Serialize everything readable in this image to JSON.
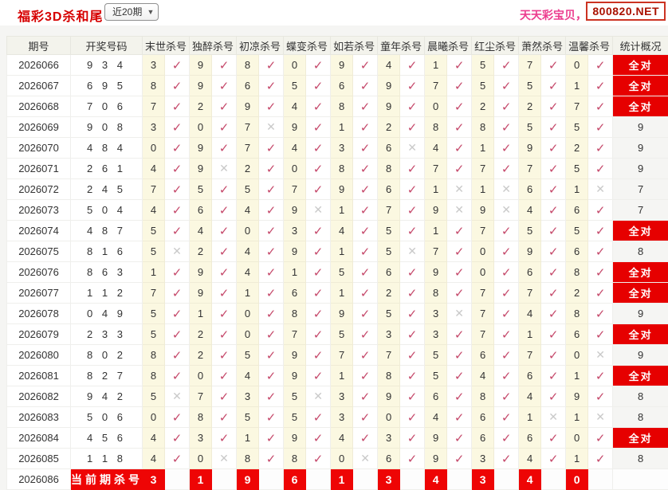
{
  "header": {
    "title": "福彩3D杀和尾",
    "range_selector": {
      "value": "近20期"
    },
    "promo_text": "天天彩宝贝，天",
    "site_badge": "800820.NET"
  },
  "labels": {
    "all_correct": "全对",
    "current_kill_label": "当前期杀号"
  },
  "table": {
    "columns": {
      "period": "期号",
      "draw_numbers": "开奖号码",
      "kills": [
        "末世杀号",
        "独醉杀号",
        "初凉杀号",
        "蝶变杀号",
        "如若杀号",
        "童年杀号",
        "晨曦杀号",
        "红尘杀号",
        "萧然杀号",
        "温馨杀号"
      ],
      "stat": "统计概况"
    },
    "rows": [
      {
        "period": "2026066",
        "numbers": "9 3 4",
        "kills": [
          [
            "3",
            "v"
          ],
          [
            "9",
            "v"
          ],
          [
            "8",
            "v"
          ],
          [
            "0",
            "v"
          ],
          [
            "9",
            "v"
          ],
          [
            "4",
            "v"
          ],
          [
            "1",
            "v"
          ],
          [
            "5",
            "v"
          ],
          [
            "7",
            "v"
          ],
          [
            "0",
            "v"
          ]
        ],
        "stat": "全对"
      },
      {
        "period": "2026067",
        "numbers": "6 9 5",
        "kills": [
          [
            "8",
            "v"
          ],
          [
            "9",
            "v"
          ],
          [
            "6",
            "v"
          ],
          [
            "5",
            "v"
          ],
          [
            "6",
            "v"
          ],
          [
            "9",
            "v"
          ],
          [
            "7",
            "v"
          ],
          [
            "5",
            "v"
          ],
          [
            "5",
            "v"
          ],
          [
            "1",
            "v"
          ]
        ],
        "stat": "全对"
      },
      {
        "period": "2026068",
        "numbers": "7 0 6",
        "kills": [
          [
            "7",
            "v"
          ],
          [
            "2",
            "v"
          ],
          [
            "9",
            "v"
          ],
          [
            "4",
            "v"
          ],
          [
            "8",
            "v"
          ],
          [
            "9",
            "v"
          ],
          [
            "0",
            "v"
          ],
          [
            "2",
            "v"
          ],
          [
            "2",
            "v"
          ],
          [
            "7",
            "v"
          ]
        ],
        "stat": "全对"
      },
      {
        "period": "2026069",
        "numbers": "9 0 8",
        "kills": [
          [
            "3",
            "v"
          ],
          [
            "0",
            "v"
          ],
          [
            "7",
            "x"
          ],
          [
            "9",
            "v"
          ],
          [
            "1",
            "v"
          ],
          [
            "2",
            "v"
          ],
          [
            "8",
            "v"
          ],
          [
            "8",
            "v"
          ],
          [
            "5",
            "v"
          ],
          [
            "5",
            "v"
          ]
        ],
        "stat": "9"
      },
      {
        "period": "2026070",
        "numbers": "4 8 4",
        "kills": [
          [
            "0",
            "v"
          ],
          [
            "9",
            "v"
          ],
          [
            "7",
            "v"
          ],
          [
            "4",
            "v"
          ],
          [
            "3",
            "v"
          ],
          [
            "6",
            "x"
          ],
          [
            "4",
            "v"
          ],
          [
            "1",
            "v"
          ],
          [
            "9",
            "v"
          ],
          [
            "2",
            "v"
          ]
        ],
        "stat": "9"
      },
      {
        "period": "2026071",
        "numbers": "2 6 1",
        "kills": [
          [
            "4",
            "v"
          ],
          [
            "9",
            "x"
          ],
          [
            "2",
            "v"
          ],
          [
            "0",
            "v"
          ],
          [
            "8",
            "v"
          ],
          [
            "8",
            "v"
          ],
          [
            "7",
            "v"
          ],
          [
            "7",
            "v"
          ],
          [
            "7",
            "v"
          ],
          [
            "5",
            "v"
          ]
        ],
        "stat": "9"
      },
      {
        "period": "2026072",
        "numbers": "2 4 5",
        "kills": [
          [
            "7",
            "v"
          ],
          [
            "5",
            "v"
          ],
          [
            "5",
            "v"
          ],
          [
            "7",
            "v"
          ],
          [
            "9",
            "v"
          ],
          [
            "6",
            "v"
          ],
          [
            "1",
            "x"
          ],
          [
            "1",
            "x"
          ],
          [
            "6",
            "v"
          ],
          [
            "1",
            "x"
          ]
        ],
        "stat": "7"
      },
      {
        "period": "2026073",
        "numbers": "5 0 4",
        "kills": [
          [
            "4",
            "v"
          ],
          [
            "6",
            "v"
          ],
          [
            "4",
            "v"
          ],
          [
            "9",
            "x"
          ],
          [
            "1",
            "v"
          ],
          [
            "7",
            "v"
          ],
          [
            "9",
            "x"
          ],
          [
            "9",
            "x"
          ],
          [
            "4",
            "v"
          ],
          [
            "6",
            "v"
          ]
        ],
        "stat": "7"
      },
      {
        "period": "2026074",
        "numbers": "4 8 7",
        "kills": [
          [
            "5",
            "v"
          ],
          [
            "4",
            "v"
          ],
          [
            "0",
            "v"
          ],
          [
            "3",
            "v"
          ],
          [
            "4",
            "v"
          ],
          [
            "5",
            "v"
          ],
          [
            "1",
            "v"
          ],
          [
            "7",
            "v"
          ],
          [
            "5",
            "v"
          ],
          [
            "5",
            "v"
          ]
        ],
        "stat": "全对"
      },
      {
        "period": "2026075",
        "numbers": "8 1 6",
        "kills": [
          [
            "5",
            "x"
          ],
          [
            "2",
            "v"
          ],
          [
            "4",
            "v"
          ],
          [
            "9",
            "v"
          ],
          [
            "1",
            "v"
          ],
          [
            "5",
            "x"
          ],
          [
            "7",
            "v"
          ],
          [
            "0",
            "v"
          ],
          [
            "9",
            "v"
          ],
          [
            "6",
            "v"
          ]
        ],
        "stat": "8"
      },
      {
        "period": "2026076",
        "numbers": "8 6 3",
        "kills": [
          [
            "1",
            "v"
          ],
          [
            "9",
            "v"
          ],
          [
            "4",
            "v"
          ],
          [
            "1",
            "v"
          ],
          [
            "5",
            "v"
          ],
          [
            "6",
            "v"
          ],
          [
            "9",
            "v"
          ],
          [
            "0",
            "v"
          ],
          [
            "6",
            "v"
          ],
          [
            "8",
            "v"
          ]
        ],
        "stat": "全对"
      },
      {
        "period": "2026077",
        "numbers": "1 1 2",
        "kills": [
          [
            "7",
            "v"
          ],
          [
            "9",
            "v"
          ],
          [
            "1",
            "v"
          ],
          [
            "6",
            "v"
          ],
          [
            "1",
            "v"
          ],
          [
            "2",
            "v"
          ],
          [
            "8",
            "v"
          ],
          [
            "7",
            "v"
          ],
          [
            "7",
            "v"
          ],
          [
            "2",
            "v"
          ]
        ],
        "stat": "全对"
      },
      {
        "period": "2026078",
        "numbers": "0 4 9",
        "kills": [
          [
            "5",
            "v"
          ],
          [
            "1",
            "v"
          ],
          [
            "0",
            "v"
          ],
          [
            "8",
            "v"
          ],
          [
            "9",
            "v"
          ],
          [
            "5",
            "v"
          ],
          [
            "3",
            "x"
          ],
          [
            "7",
            "v"
          ],
          [
            "4",
            "v"
          ],
          [
            "8",
            "v"
          ]
        ],
        "stat": "9"
      },
      {
        "period": "2026079",
        "numbers": "2 3 3",
        "kills": [
          [
            "5",
            "v"
          ],
          [
            "2",
            "v"
          ],
          [
            "0",
            "v"
          ],
          [
            "7",
            "v"
          ],
          [
            "5",
            "v"
          ],
          [
            "3",
            "v"
          ],
          [
            "3",
            "v"
          ],
          [
            "7",
            "v"
          ],
          [
            "1",
            "v"
          ],
          [
            "6",
            "v"
          ]
        ],
        "stat": "全对"
      },
      {
        "period": "2026080",
        "numbers": "8 0 2",
        "kills": [
          [
            "8",
            "v"
          ],
          [
            "2",
            "v"
          ],
          [
            "5",
            "v"
          ],
          [
            "9",
            "v"
          ],
          [
            "7",
            "v"
          ],
          [
            "7",
            "v"
          ],
          [
            "5",
            "v"
          ],
          [
            "6",
            "v"
          ],
          [
            "7",
            "v"
          ],
          [
            "0",
            "x"
          ]
        ],
        "stat": "9"
      },
      {
        "period": "2026081",
        "numbers": "8 2 7",
        "kills": [
          [
            "8",
            "v"
          ],
          [
            "0",
            "v"
          ],
          [
            "4",
            "v"
          ],
          [
            "9",
            "v"
          ],
          [
            "1",
            "v"
          ],
          [
            "8",
            "v"
          ],
          [
            "5",
            "v"
          ],
          [
            "4",
            "v"
          ],
          [
            "6",
            "v"
          ],
          [
            "1",
            "v"
          ]
        ],
        "stat": "全对"
      },
      {
        "period": "2026082",
        "numbers": "9 4 2",
        "kills": [
          [
            "5",
            "x"
          ],
          [
            "7",
            "v"
          ],
          [
            "3",
            "v"
          ],
          [
            "5",
            "x"
          ],
          [
            "3",
            "v"
          ],
          [
            "9",
            "v"
          ],
          [
            "6",
            "v"
          ],
          [
            "8",
            "v"
          ],
          [
            "4",
            "v"
          ],
          [
            "9",
            "v"
          ]
        ],
        "stat": "8"
      },
      {
        "period": "2026083",
        "numbers": "5 0 6",
        "kills": [
          [
            "0",
            "v"
          ],
          [
            "8",
            "v"
          ],
          [
            "5",
            "v"
          ],
          [
            "5",
            "v"
          ],
          [
            "3",
            "v"
          ],
          [
            "0",
            "v"
          ],
          [
            "4",
            "v"
          ],
          [
            "6",
            "v"
          ],
          [
            "1",
            "x"
          ],
          [
            "1",
            "x"
          ]
        ],
        "stat": "8"
      },
      {
        "period": "2026084",
        "numbers": "4 5 6",
        "kills": [
          [
            "4",
            "v"
          ],
          [
            "3",
            "v"
          ],
          [
            "1",
            "v"
          ],
          [
            "9",
            "v"
          ],
          [
            "4",
            "v"
          ],
          [
            "3",
            "v"
          ],
          [
            "9",
            "v"
          ],
          [
            "6",
            "v"
          ],
          [
            "6",
            "v"
          ],
          [
            "0",
            "v"
          ]
        ],
        "stat": "全对"
      },
      {
        "period": "2026085",
        "numbers": "1 1 8",
        "kills": [
          [
            "4",
            "v"
          ],
          [
            "0",
            "x"
          ],
          [
            "8",
            "v"
          ],
          [
            "8",
            "v"
          ],
          [
            "0",
            "x"
          ],
          [
            "6",
            "v"
          ],
          [
            "9",
            "v"
          ],
          [
            "3",
            "v"
          ],
          [
            "4",
            "v"
          ],
          [
            "1",
            "v"
          ]
        ],
        "stat": "8"
      }
    ],
    "current_row": {
      "period": "2026086",
      "label": "当前期杀号",
      "kills": [
        "3",
        "1",
        "9",
        "6",
        "1",
        "3",
        "4",
        "3",
        "4",
        "0"
      ],
      "stat": ""
    }
  },
  "colors": {
    "accent_red": "#e60000",
    "title_red": "#d60000",
    "promo_pink": "#ec3c8e",
    "hit_check": "#c5496b",
    "miss_x": "#c9c9c9",
    "kill_cell_bg": "#fbf8e1"
  }
}
